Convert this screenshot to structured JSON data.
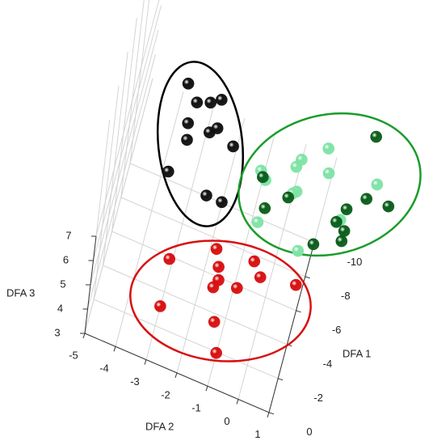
{
  "chart_data": {
    "type": "scatter3d",
    "xlabel": "DFA 2",
    "ylabel": "DFA 1",
    "zlabel": "DFA 3",
    "xlim": [
      -5,
      1
    ],
    "xticks": [
      -5,
      -4,
      -3,
      -2,
      -1,
      0,
      1
    ],
    "ylim": [
      0,
      -10
    ],
    "yticks": [
      0,
      -2,
      -4,
      -6,
      -8,
      -10
    ],
    "zlim": [
      3,
      7
    ],
    "zticks": [
      3,
      4,
      5,
      6,
      7
    ],
    "grid": true,
    "series": [
      {
        "color": "#111111",
        "x": [
          -3.6,
          -3.2,
          -2.8,
          -2.5,
          -3.3,
          -2.6,
          -2.4,
          -3.2,
          -1.8,
          -3.5,
          -2.2,
          -1.7
        ],
        "y": [
          -11.5,
          -10.7,
          -11.0,
          -11.4,
          -9.4,
          -9.4,
          -9.8,
          -8.5,
          -9.2,
          -6.4,
          -6.0,
          -6.0
        ],
        "z": [
          6,
          6,
          6,
          6,
          6,
          6,
          6,
          6,
          6,
          6,
          6,
          6
        ]
      },
      {
        "color": "#7fe3a6",
        "x": [
          0.9,
          0.2,
          0.1,
          1.1,
          -0.9,
          -0.7,
          0.3,
          0.2,
          2.6,
          1.8,
          -0.6,
          0.8
        ],
        "y": [
          -12.6,
          -11.4,
          -10.9,
          -11.3,
          -9.9,
          -9.5,
          -9.6,
          -9.4,
          -11.8,
          -9.1,
          -7.1,
          -6.5
        ],
        "z": [
          5,
          5,
          5,
          5,
          5,
          5,
          5,
          5,
          5,
          5,
          5,
          5
        ]
      },
      {
        "color": "#0b5e1c",
        "x": [
          2.2,
          -0.8,
          -0.5,
          0.1,
          2.4,
          3.1,
          1.9,
          1.7,
          2.0,
          2.0,
          1.2
        ],
        "y": [
          -14.3,
          -9.6,
          -8.0,
          -9.1,
          -10.8,
          -10.9,
          -9.8,
          -8.9,
          -8.6,
          -8.0,
          -7.2
        ],
        "z": [
          5,
          5,
          5,
          5,
          5,
          5,
          5,
          5,
          5,
          5,
          5
        ]
      },
      {
        "color": "#d81010",
        "x": [
          -3.0,
          -1.7,
          -1.5,
          -0.5,
          -1.4,
          -0.2,
          0.9,
          -1.5,
          -0.8,
          -2.9,
          -1.2,
          -0.9
        ],
        "y": [
          -4.5,
          -6.1,
          -5.2,
          -6.3,
          -4.5,
          -5.6,
          -6.0,
          -4.0,
          -4.5,
          -1.8,
          -2.2,
          -0.6
        ],
        "z": [
          4,
          4,
          4,
          4,
          4,
          4,
          4,
          4,
          4,
          4,
          4,
          4
        ]
      }
    ]
  }
}
